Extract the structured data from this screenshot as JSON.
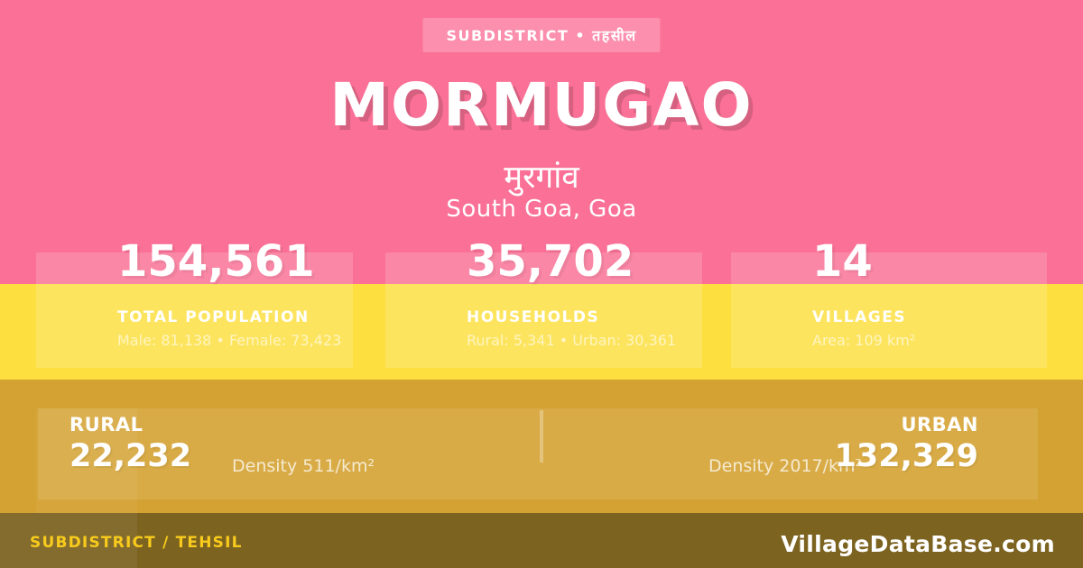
{
  "badge": {
    "label": "SUBDISTRICT • तहसील"
  },
  "header": {
    "title": "MORMUGAO",
    "native_name": "मुरगांव",
    "location": "South Goa, Goa"
  },
  "stats": [
    {
      "value": "154,561",
      "label": "TOTAL POPULATION",
      "detail": "Male: 81,138 • Female: 73,423"
    },
    {
      "value": "35,702",
      "label": "HOUSEHOLDS",
      "detail": "Rural: 5,341 • Urban: 30,361"
    },
    {
      "value": "14",
      "label": "VILLAGES",
      "detail": "Area: 109 km²"
    }
  ],
  "breakdown": {
    "rural": {
      "label": "RURAL",
      "value": "22,232",
      "density": "Density 511/km²"
    },
    "urban": {
      "label": "URBAN",
      "value": "132,329",
      "density": "Density 2017/km²"
    }
  },
  "footer": {
    "left": "SUBDISTRICT / TEHSIL",
    "right": "VillageDataBase.com"
  },
  "colors": {
    "pink_background": "#FA7096",
    "yellow_band": "#FDDF40",
    "gold_band": "#D4A232",
    "footer_background": "#7C6320",
    "footer_accent_text": "#F8CB1C",
    "text": "#FFFFFF"
  }
}
